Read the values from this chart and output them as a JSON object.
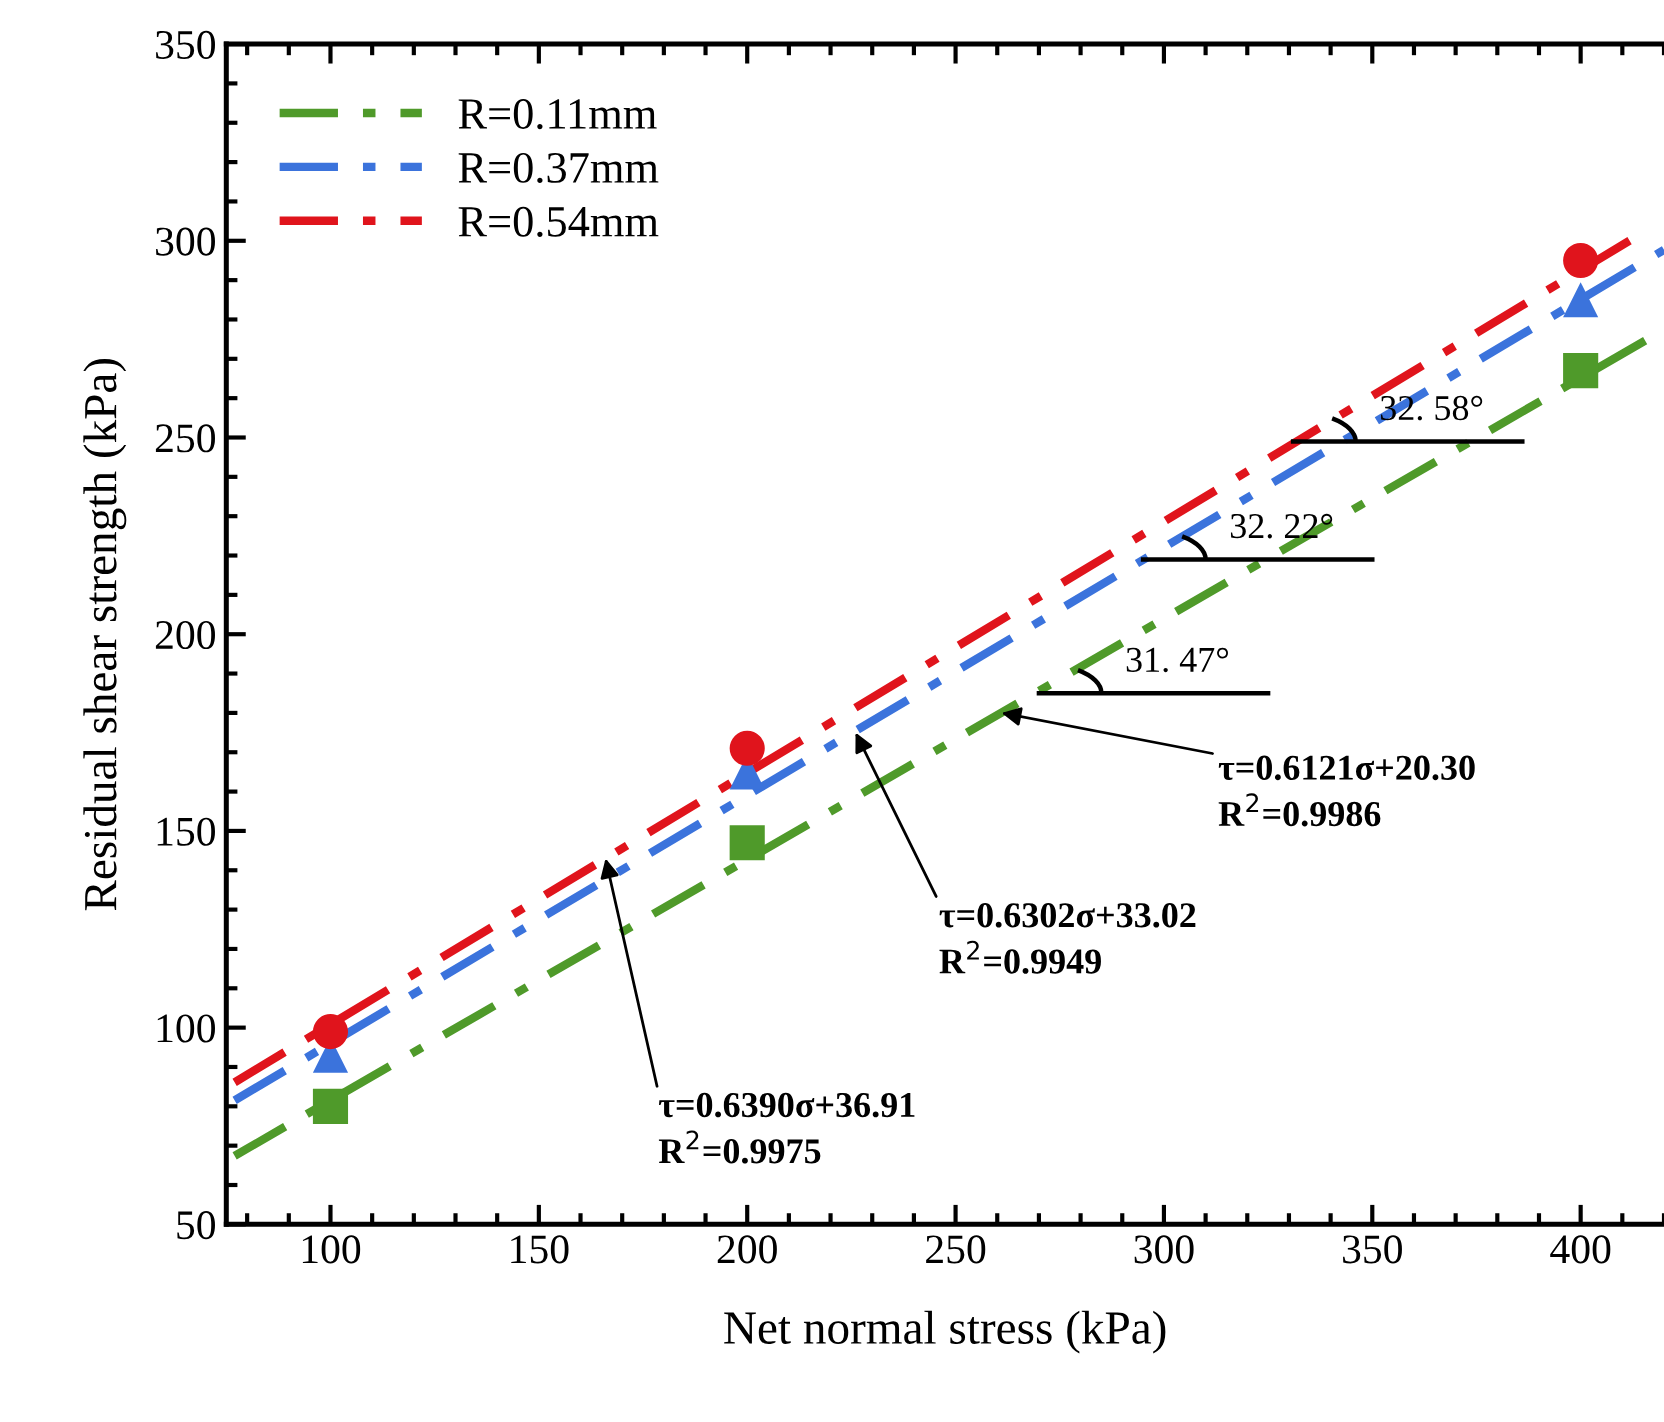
{
  "chart_data": {
    "type": "scatter",
    "xlabel": "Net normal stress (kPa)",
    "ylabel": "Residual shear strength (kPa)",
    "xlim": [
      75,
      420
    ],
    "xticks": [
      100,
      150,
      200,
      250,
      300,
      350,
      400
    ],
    "ylim": [
      50,
      350
    ],
    "yticks": [
      50,
      100,
      150,
      200,
      250,
      300,
      350
    ],
    "grid": false,
    "legend": "top left",
    "series": [
      {
        "type": "line",
        "name": "R=0.11mm",
        "color": "#4f9a2a",
        "line_style": "dashdot",
        "marker": "none",
        "x": [
          77,
          420
        ],
        "values": [
          67.4,
          277.4
        ]
      },
      {
        "type": "line",
        "name": "R=0.37mm",
        "color": "#3b73dc",
        "line_style": "dashdot",
        "marker": "none",
        "x": [
          77,
          420
        ],
        "values": [
          81.5,
          297.7
        ]
      },
      {
        "type": "line",
        "name": "R=0.54mm",
        "color": "#e0141c",
        "line_style": "dashdot",
        "marker": "none",
        "x": [
          77,
          412
        ],
        "values": [
          86.1,
          300.2
        ]
      },
      {
        "color": "#4f9a2a",
        "marker": "square",
        "x": [
          100,
          200,
          400
        ],
        "values": [
          80,
          147,
          267
        ]
      },
      {
        "color": "#3b73dc",
        "marker": "triangle",
        "x": [
          100,
          200,
          400
        ],
        "values": [
          93,
          165,
          285
        ]
      },
      {
        "color": "#e0141c",
        "marker": "circle",
        "x": [
          100,
          200,
          400
        ],
        "values": [
          99,
          171,
          295
        ]
      }
    ],
    "annotations": [
      {
        "text": "τ=0.6390σ+36.91\nR$^{2}$=0.9975",
        "x": 166,
        "y": 143
      },
      {
        "text": "τ=0.6302σ+33.02\nR$^{2}$=0.9949",
        "x": 226,
        "y": 175
      },
      {
        "text": "τ=0.6121σ+20.30\nR$^{2}$=0.9986",
        "x": 261,
        "y": 180
      },
      {
        "text": "31. 47°",
        "x": 270,
        "y": 185
      },
      {
        "text": "32. 22°",
        "x": 295,
        "y": 219
      },
      {
        "text": "32. 58°",
        "x": 331,
        "y": 249
      }
    ]
  }
}
